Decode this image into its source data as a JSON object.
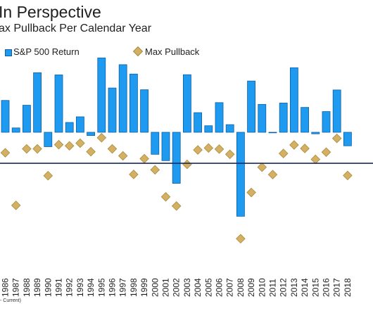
{
  "chart_data": {
    "type": "bar",
    "title": "In Perspective",
    "subtitle": "ax Pullback Per Calendar Year",
    "footnote": "- Current)",
    "legend": {
      "placement": "top",
      "return_label": "S&P 500 Return",
      "pullback_label": "Max Pullback"
    },
    "colors": {
      "bar_fill": "#1e9bf0",
      "bar_stroke": "#0b5fa8",
      "marker_fill": "#d4b063",
      "marker_stroke": "#a98a3f",
      "reference_line": "#1a2a5e"
    },
    "categories": [
      "1986",
      "1987",
      "1988",
      "1989",
      "1990",
      "1991",
      "1992",
      "1993",
      "1994",
      "1995",
      "1996",
      "1997",
      "1998",
      "1999",
      "2000",
      "2001",
      "2002",
      "2003",
      "2004",
      "2005",
      "2006",
      "2007",
      "2008",
      "2009",
      "2010",
      "2011",
      "2012",
      "2013",
      "2014",
      "2015",
      "2016",
      "2017",
      "2018"
    ],
    "series": [
      {
        "name": "S&P 500 Return",
        "kind": "bar",
        "values": [
          14.6,
          2.0,
          12.4,
          27.3,
          -6.6,
          26.3,
          4.5,
          7.1,
          -1.5,
          34.1,
          20.3,
          31.0,
          26.7,
          19.5,
          -10.1,
          -13.0,
          -23.4,
          26.4,
          9.0,
          3.0,
          13.6,
          3.5,
          -38.5,
          23.5,
          12.8,
          0.0,
          13.4,
          29.6,
          11.4,
          -0.7,
          9.5,
          19.4,
          -6.2
        ]
      },
      {
        "name": "Max Pullback",
        "kind": "marker",
        "values": [
          -9.4,
          -33.5,
          -7.6,
          -7.6,
          -19.9,
          -5.7,
          -6.2,
          -5.0,
          -8.9,
          -2.5,
          -7.6,
          -10.8,
          -19.3,
          -12.1,
          -17.2,
          -29.6,
          -33.8,
          -14.7,
          -8.1,
          -7.2,
          -7.7,
          -10.1,
          -48.8,
          -27.6,
          -16.0,
          -19.4,
          -9.7,
          -5.8,
          -7.4,
          -12.4,
          -9.1,
          -2.8,
          -19.8
        ]
      }
    ],
    "reference_line": {
      "value": -14.2
    },
    "ylim": [
      -54,
      36
    ],
    "grid": false
  }
}
